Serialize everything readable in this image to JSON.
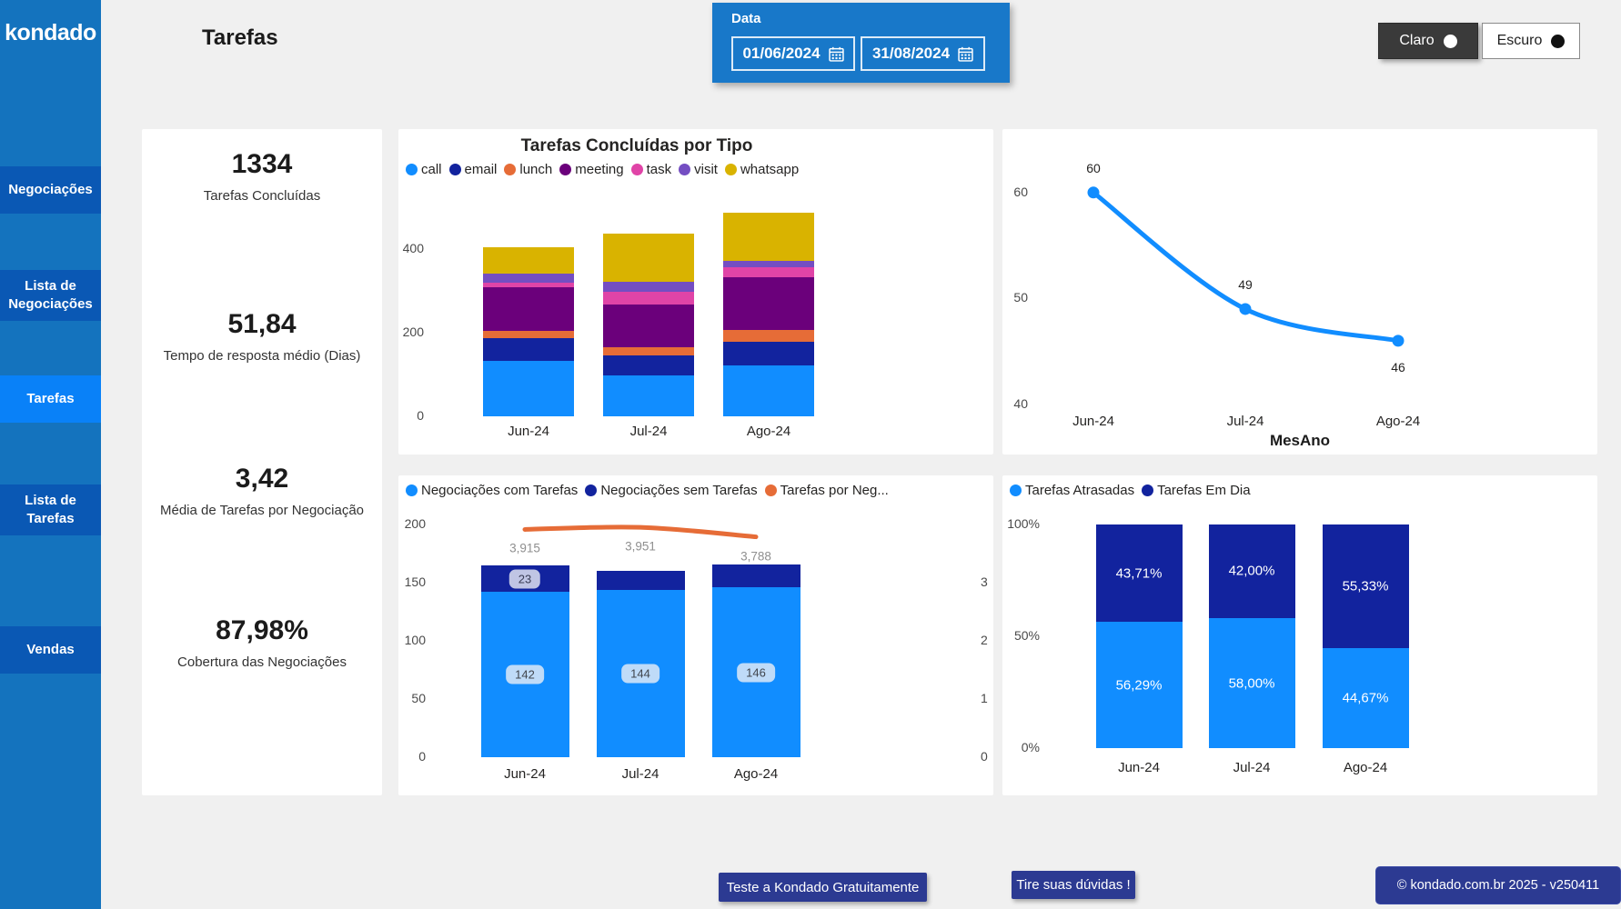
{
  "header": {
    "title": "Tarefas"
  },
  "sidebar": {
    "logo": "kondado",
    "items": [
      {
        "label": "Negociações",
        "active": false
      },
      {
        "label": "Lista de Negociações",
        "active": false
      },
      {
        "label": "Tarefas",
        "active": true
      },
      {
        "label": "Lista de Tarefas",
        "active": false
      },
      {
        "label": "Vendas",
        "active": false
      }
    ]
  },
  "filter": {
    "label": "Data",
    "start_date": "01/06/2024",
    "end_date": "31/08/2024"
  },
  "theme": {
    "light_label": "Claro",
    "dark_label": "Escuro"
  },
  "kpis": [
    {
      "value": "1334",
      "label": "Tarefas Concluídas"
    },
    {
      "value": "51,84",
      "label": "Tempo de resposta médio (Dias)"
    },
    {
      "value": "3,42",
      "label": "Média de Tarefas por Negociação"
    },
    {
      "value": "87,98%",
      "label": "Cobertura das Negociações"
    }
  ],
  "footer": {
    "cta": "Teste a Kondado Gratuitamente",
    "help": "Tire suas dúvidas !",
    "copyright": "© kondado.com.br 2025 - v250411"
  },
  "colors": {
    "accent_blue": "#118DFF",
    "navy": "#12239E",
    "orange": "#E66C37",
    "sidebar_bg": "#1473BE",
    "sidebar_item": "#0A58B4",
    "sidebar_active": "#0981F8",
    "filter_panel": "#1878C9",
    "button_navy": "#2C3A92",
    "canvas": "#F0F0F0"
  },
  "chart_data": [
    {
      "id": "tasks_by_type",
      "type": "bar",
      "stacked": true,
      "title": "Tarefas Concluídas por Tipo",
      "categories": [
        "Jun-24",
        "Jul-24",
        "Ago-24"
      ],
      "series": [
        {
          "name": "call",
          "color": "#118DFF",
          "values": [
            133,
            97,
            122
          ]
        },
        {
          "name": "email",
          "color": "#12239E",
          "values": [
            54,
            49,
            56
          ]
        },
        {
          "name": "lunch",
          "color": "#E66C37",
          "values": [
            18,
            19,
            29
          ]
        },
        {
          "name": "meeting",
          "color": "#6B007B",
          "values": [
            104,
            102,
            125
          ]
        },
        {
          "name": "task",
          "color": "#E044A7",
          "values": [
            11,
            30,
            24
          ]
        },
        {
          "name": "visit",
          "color": "#744EC2",
          "values": [
            22,
            25,
            16
          ]
        },
        {
          "name": "whatsapp",
          "color": "#D9B300",
          "values": [
            63,
            115,
            114
          ]
        }
      ],
      "yticks": [
        0,
        200,
        400
      ],
      "ymax": 520,
      "legend_position": "top",
      "grid": false
    },
    {
      "id": "media_por_mes",
      "type": "line",
      "x": [
        "Jun-24",
        "Jul-24",
        "Ago-24"
      ],
      "values": [
        60,
        49,
        46
      ],
      "point_labels": [
        "60",
        "49",
        "46"
      ],
      "xlabel": "MesAno",
      "yticks": [
        40,
        50,
        60
      ],
      "ylim": [
        38,
        64
      ],
      "color": "#118DFF",
      "smooth": true,
      "markers": true
    },
    {
      "id": "negociacoes_tarefas",
      "type": "combo",
      "categories": [
        "Jun-24",
        "Jul-24",
        "Ago-24"
      ],
      "bar_series": [
        {
          "name": "Negociações com Tarefas",
          "color": "#118DFF",
          "values": [
            142,
            144,
            146
          ],
          "labels": [
            "142",
            "144",
            "146"
          ]
        },
        {
          "name": "Negociações sem Tarefas",
          "color": "#12239E",
          "values": [
            23,
            16,
            20
          ],
          "labels": [
            "23",
            "",
            ""
          ]
        }
      ],
      "line_series": {
        "name": "Tarefas por Neg...",
        "color": "#E66C37",
        "values": [
          3.915,
          3.951,
          3.788
        ],
        "labels": [
          "3,915",
          "3,951",
          "3,788"
        ]
      },
      "left_axis": {
        "ticks": [
          0,
          50,
          100,
          150,
          200
        ],
        "max": 200
      },
      "right_axis": {
        "ticks": [
          0,
          1,
          2,
          3
        ],
        "max": 4
      }
    },
    {
      "id": "tarefas_status",
      "type": "bar100",
      "categories": [
        "Jun-24",
        "Jul-24",
        "Ago-24"
      ],
      "series": [
        {
          "name": "Tarefas Atrasadas",
          "color": "#118DFF",
          "values": [
            56.29,
            58.0,
            44.67
          ],
          "labels": [
            "56,29%",
            "58,00%",
            "44,67%"
          ]
        },
        {
          "name": "Tarefas Em Dia",
          "color": "#12239E",
          "values": [
            43.71,
            42.0,
            55.33
          ],
          "labels": [
            "43,71%",
            "42,00%",
            "55,33%"
          ]
        }
      ],
      "yticks": [
        "0%",
        "50%",
        "100%"
      ]
    }
  ]
}
